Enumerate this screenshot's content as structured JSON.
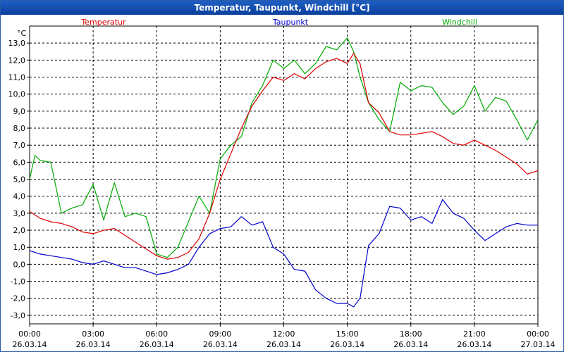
{
  "window": {
    "title": "Temperatur, Taupunkt, Windchill [°C]"
  },
  "chart_data": {
    "type": "line",
    "title": "Temperatur, Taupunkt, Windchill [°C]",
    "ylabel": "°C",
    "ylim": [
      -3.5,
      14.0
    ],
    "y_ticks": [
      13.0,
      12.0,
      11.0,
      10.0,
      9.0,
      8.0,
      7.0,
      6.0,
      5.0,
      4.0,
      3.0,
      2.0,
      1.0,
      0.0,
      -1.0,
      -2.0,
      -3.0
    ],
    "y_tick_labels": [
      "13,0",
      "12,0",
      "11,0",
      "10,0",
      "9,0",
      "8,0",
      "7,0",
      "6,0",
      "5,0",
      "4,0",
      "3,0",
      "2,0",
      "1,0",
      "0,0",
      "-1,0",
      "-2,0",
      "-3,0"
    ],
    "xlim": [
      0,
      24
    ],
    "x_ticks": [
      0,
      3,
      6,
      9,
      12,
      15,
      18,
      21,
      24
    ],
    "x_tick_times": [
      "00:00",
      "03:00",
      "06:00",
      "09:00",
      "12:00",
      "15:00",
      "18:00",
      "21:00",
      "00:00"
    ],
    "x_tick_dates": [
      "26.03.14",
      "26.03.14",
      "26.03.14",
      "26.03.14",
      "26.03.14",
      "26.03.14",
      "26.03.14",
      "26.03.14",
      "27.03.14"
    ],
    "grid": true,
    "legend_placement": "top",
    "series": [
      {
        "name": "Temperatur",
        "color": "#dd0000",
        "x": [
          0,
          0.5,
          1,
          1.5,
          2,
          2.5,
          3,
          3.5,
          4,
          4.5,
          5,
          5.5,
          6,
          6.5,
          7,
          7.5,
          8,
          8.5,
          9,
          9.5,
          10,
          10.5,
          11,
          11.5,
          12,
          12.5,
          13,
          13.5,
          14,
          14.5,
          15,
          15.3,
          15.6,
          16,
          16.5,
          17,
          17.5,
          18,
          18.5,
          19,
          19.5,
          20,
          20.5,
          21,
          21.5,
          22,
          22.5,
          23,
          23.5,
          24
        ],
        "y": [
          3.1,
          2.7,
          2.5,
          2.4,
          2.2,
          1.9,
          1.8,
          2.0,
          2.1,
          1.7,
          1.3,
          0.9,
          0.5,
          0.3,
          0.4,
          0.7,
          1.5,
          3.0,
          5.0,
          6.5,
          8.0,
          9.3,
          10.2,
          11.0,
          10.8,
          11.2,
          10.9,
          11.5,
          11.9,
          12.1,
          11.8,
          12.4,
          11.8,
          9.5,
          8.9,
          7.8,
          7.6,
          7.6,
          7.7,
          7.8,
          7.5,
          7.1,
          7.0,
          7.3,
          7.0,
          6.7,
          6.3,
          5.9,
          5.3,
          5.5
        ]
      },
      {
        "name": "Taupunkt",
        "color": "#0000cc",
        "x": [
          0,
          0.5,
          1,
          1.5,
          2,
          2.5,
          3,
          3.5,
          4,
          4.5,
          5,
          5.5,
          6,
          6.5,
          7,
          7.5,
          8,
          8.5,
          9,
          9.5,
          10,
          10.5,
          11,
          11.5,
          12,
          12.5,
          13,
          13.5,
          14,
          14.5,
          15,
          15.3,
          15.6,
          16,
          16.5,
          17,
          17.5,
          18,
          18.5,
          19,
          19.5,
          20,
          20.5,
          21,
          21.5,
          22,
          22.5,
          23,
          23.5,
          24
        ],
        "y": [
          0.8,
          0.6,
          0.5,
          0.4,
          0.3,
          0.1,
          0.0,
          0.2,
          0.0,
          -0.2,
          -0.2,
          -0.4,
          -0.6,
          -0.5,
          -0.3,
          0.0,
          1.0,
          1.8,
          2.1,
          2.2,
          2.8,
          2.3,
          2.5,
          1.0,
          0.6,
          -0.3,
          -0.4,
          -1.5,
          -2.0,
          -2.3,
          -2.3,
          -2.5,
          -2.0,
          1.1,
          1.8,
          3.4,
          3.3,
          2.6,
          2.8,
          2.4,
          3.8,
          3.0,
          2.7,
          2.0,
          1.4,
          1.8,
          2.2,
          2.4,
          2.3,
          2.3
        ]
      },
      {
        "name": "Windchill",
        "color": "#00aa00",
        "x": [
          0,
          0.25,
          0.5,
          1,
          1.5,
          2,
          2.5,
          3,
          3.5,
          4,
          4.5,
          5,
          5.5,
          6,
          6.5,
          7,
          7.5,
          8,
          8.5,
          9,
          9.5,
          10,
          10.5,
          11,
          11.5,
          12,
          12.5,
          13,
          13.5,
          14,
          14.5,
          15,
          15.3,
          15.6,
          16,
          16.5,
          17,
          17.5,
          18,
          18.5,
          19,
          19.5,
          20,
          20.5,
          21,
          21.5,
          22,
          22.5,
          23,
          23.5,
          24
        ],
        "y": [
          5.0,
          6.4,
          6.1,
          6.0,
          3.0,
          3.3,
          3.5,
          4.7,
          2.6,
          4.8,
          2.8,
          3.0,
          2.8,
          0.6,
          0.4,
          1.0,
          2.5,
          4.0,
          3.0,
          6.2,
          7.0,
          7.5,
          9.5,
          10.5,
          12.0,
          11.5,
          12.0,
          11.2,
          11.8,
          12.8,
          12.6,
          13.3,
          12.5,
          11.0,
          9.5,
          8.5,
          7.8,
          10.7,
          10.2,
          10.5,
          10.4,
          9.5,
          8.8,
          9.3,
          10.5,
          9.0,
          9.8,
          9.6,
          8.5,
          7.3,
          8.5
        ]
      }
    ]
  }
}
